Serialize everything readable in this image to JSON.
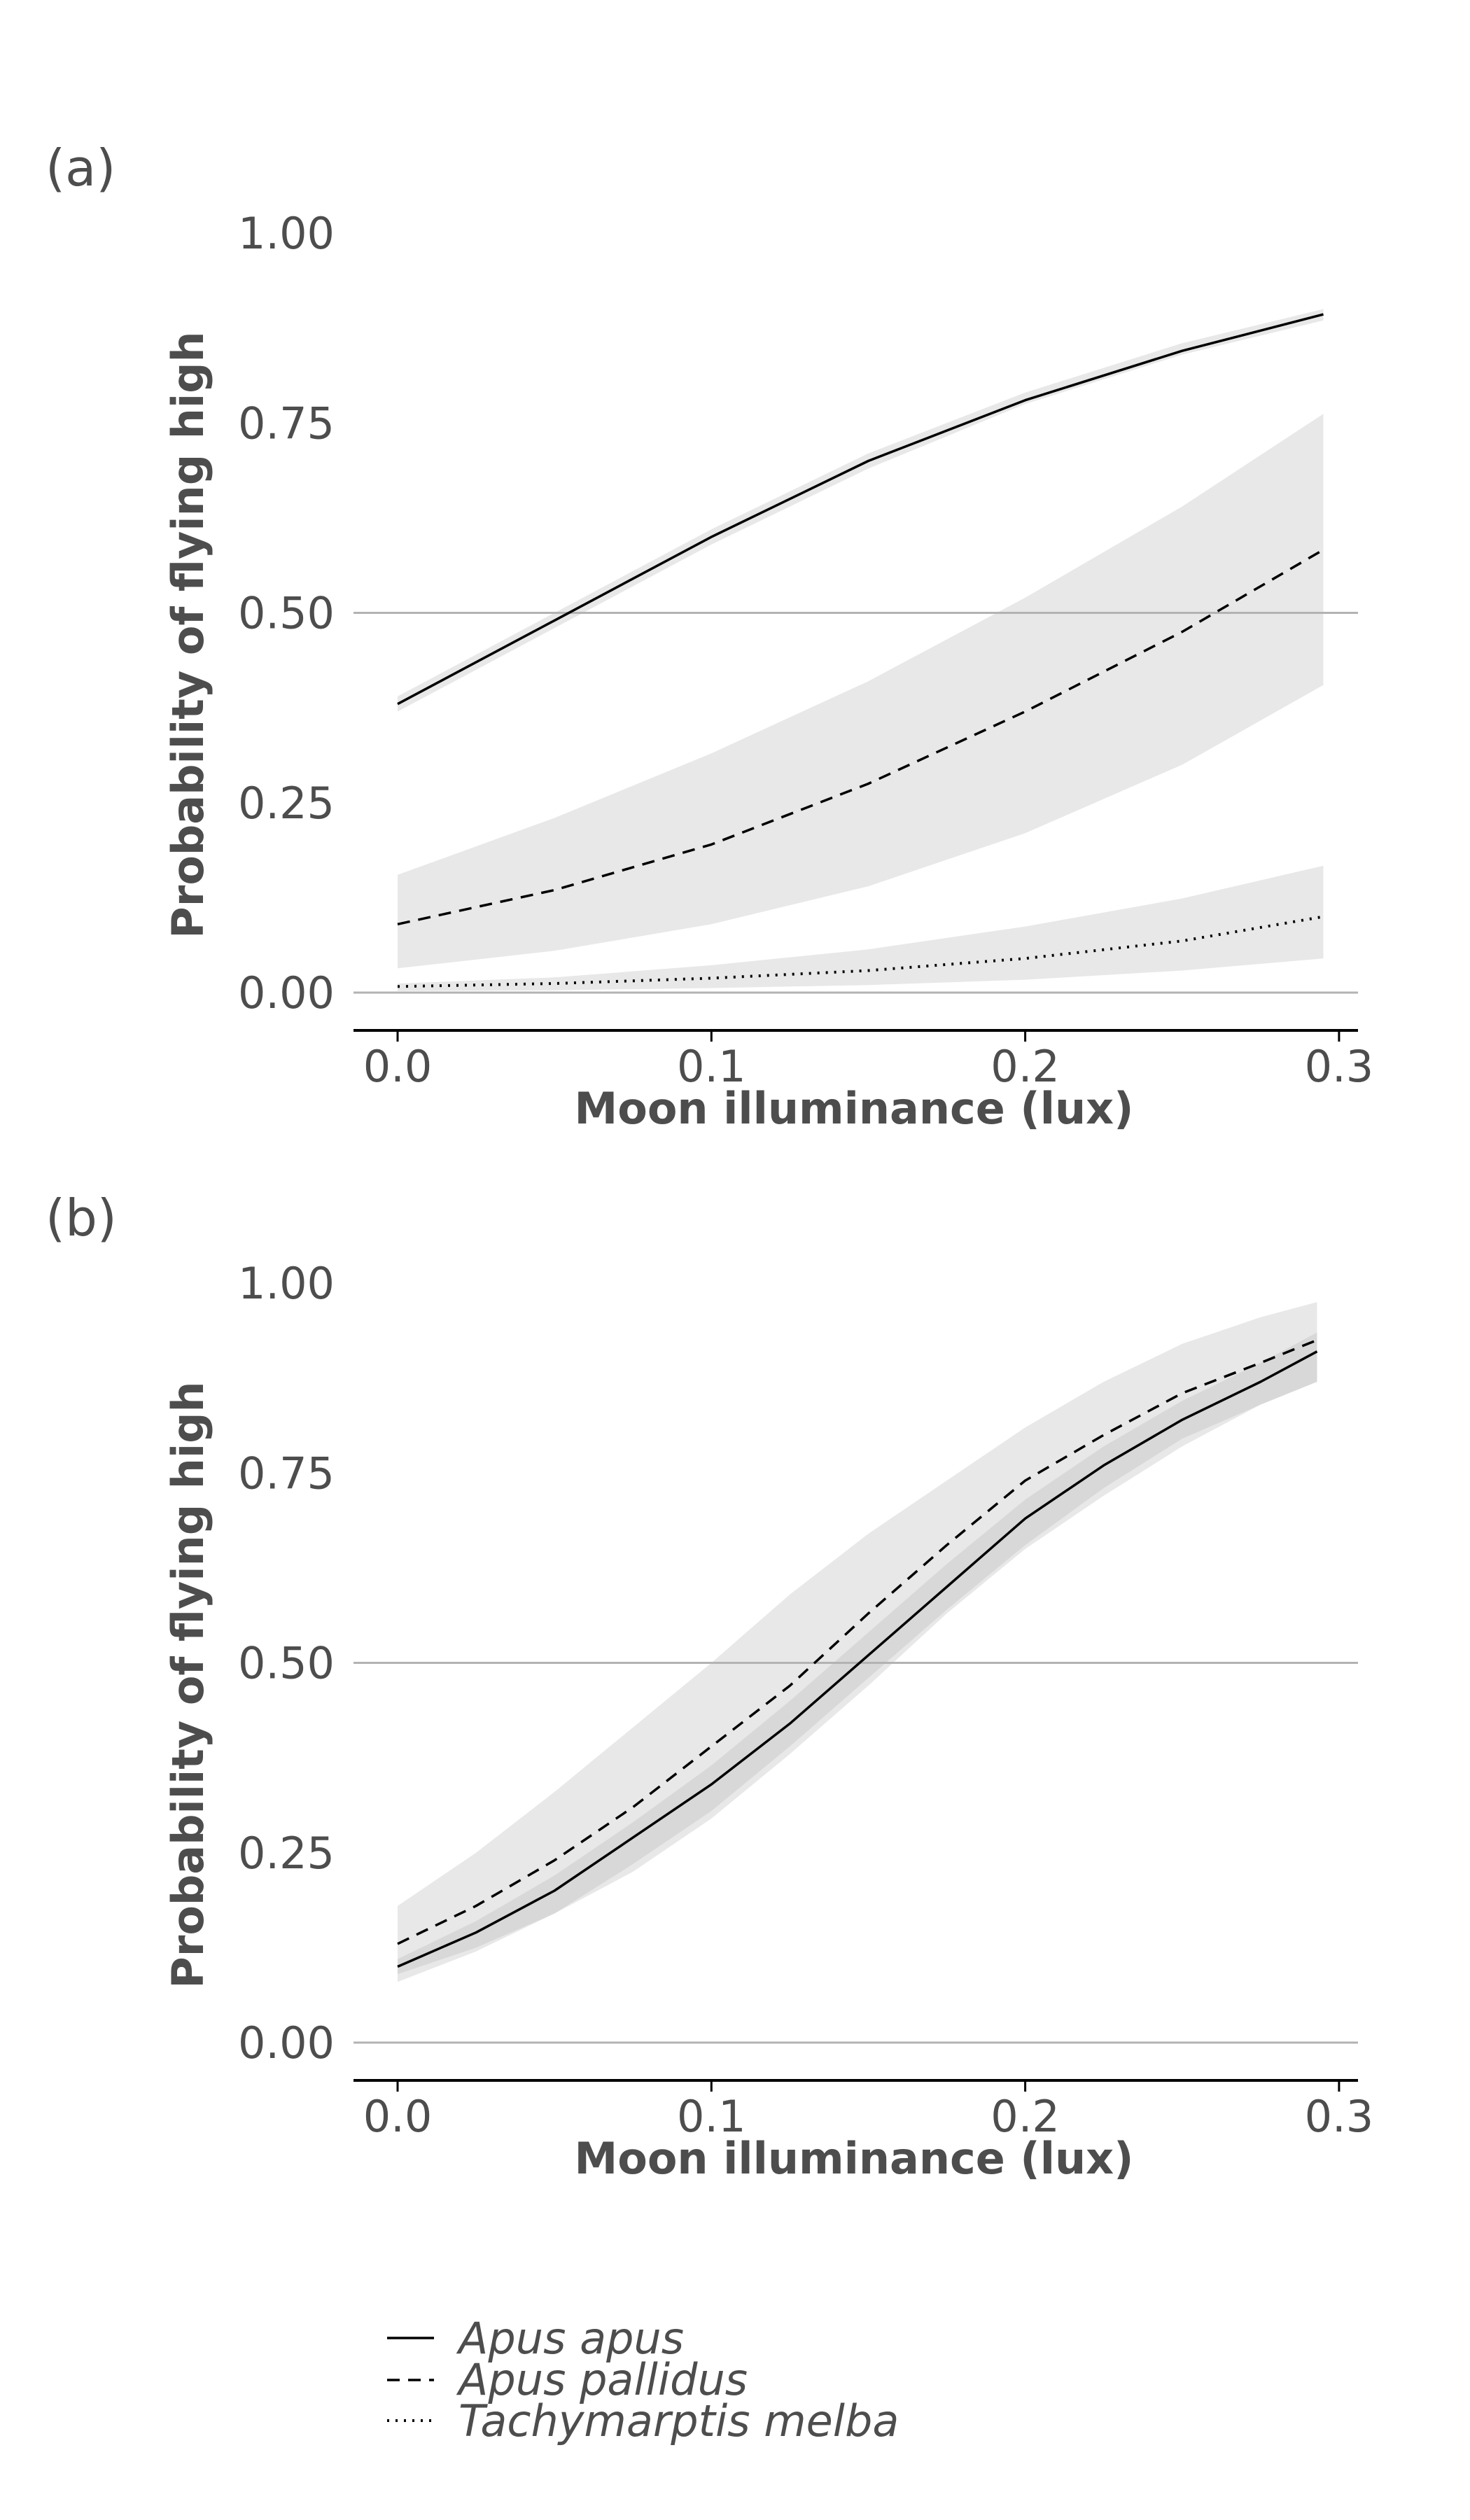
{
  "chart_data": [
    {
      "type": "line",
      "panel_label": "(a)",
      "xlabel": "Moon illuminance (lux)",
      "ylabel": "Probability of flying high",
      "xlim": [
        -0.015,
        0.31
      ],
      "ylim": [
        -0.05,
        1.0
      ],
      "x_ticks": [
        0.0,
        0.1,
        0.2,
        0.3
      ],
      "x_tick_labels": [
        "0.0",
        "0.1",
        "0.2",
        "0.3"
      ],
      "y_ticks": [
        0.0,
        0.25,
        0.5,
        0.75,
        1.0
      ],
      "y_tick_labels": [
        "0.00",
        "0.25",
        "0.50",
        "0.75",
        "1.00"
      ],
      "reference_lines_y": [
        0.0,
        0.5
      ],
      "x": [
        0.0,
        0.05,
        0.1,
        0.15,
        0.2,
        0.25,
        0.295
      ],
      "series": [
        {
          "name": "Apus apus",
          "style": "solid",
          "values": [
            0.38,
            0.49,
            0.6,
            0.7,
            0.78,
            0.845,
            0.893
          ],
          "lower": [
            0.37,
            0.48,
            0.59,
            0.69,
            0.775,
            0.84,
            0.885
          ],
          "upper": [
            0.39,
            0.5,
            0.61,
            0.71,
            0.79,
            0.855,
            0.9
          ]
        },
        {
          "name": "Apus pallidus",
          "style": "dashed",
          "values": [
            0.09,
            0.135,
            0.195,
            0.275,
            0.37,
            0.475,
            0.583
          ],
          "lower": [
            0.032,
            0.055,
            0.09,
            0.14,
            0.21,
            0.3,
            0.405
          ],
          "upper": [
            0.155,
            0.23,
            0.315,
            0.41,
            0.52,
            0.64,
            0.762
          ]
        },
        {
          "name": "Tachymarptis melba",
          "style": "dotted",
          "values": [
            0.008,
            0.012,
            0.019,
            0.029,
            0.045,
            0.068,
            0.1
          ],
          "lower": [
            0.002,
            0.003,
            0.006,
            0.01,
            0.017,
            0.029,
            0.045
          ],
          "upper": [
            0.012,
            0.02,
            0.036,
            0.057,
            0.087,
            0.124,
            0.167
          ]
        }
      ]
    },
    {
      "type": "line",
      "panel_label": "(b)",
      "xlabel": "Moon illuminance (lux)",
      "ylabel": "Probability of flying high",
      "xlim": [
        -0.015,
        0.31
      ],
      "ylim": [
        -0.05,
        1.0
      ],
      "x_ticks": [
        0.0,
        0.1,
        0.2,
        0.3
      ],
      "x_tick_labels": [
        "0.0",
        "0.1",
        "0.2",
        "0.3"
      ],
      "y_ticks": [
        0.0,
        0.25,
        0.5,
        0.75,
        1.0
      ],
      "y_tick_labels": [
        "0.00",
        "0.25",
        "0.50",
        "0.75",
        "1.00"
      ],
      "reference_lines_y": [
        0.0,
        0.5
      ],
      "x": [
        0.0,
        0.025,
        0.05,
        0.075,
        0.1,
        0.125,
        0.15,
        0.175,
        0.2,
        0.225,
        0.25,
        0.275,
        0.293
      ],
      "series": [
        {
          "name": "Apus apus",
          "style": "solid",
          "values": [
            0.1,
            0.145,
            0.2,
            0.27,
            0.34,
            0.42,
            0.51,
            0.6,
            0.69,
            0.76,
            0.82,
            0.87,
            0.91
          ],
          "lower": [
            0.08,
            0.12,
            0.17,
            0.235,
            0.305,
            0.39,
            0.48,
            0.57,
            0.655,
            0.73,
            0.795,
            0.84,
            0.87
          ],
          "upper": [
            0.11,
            0.16,
            0.22,
            0.29,
            0.365,
            0.45,
            0.54,
            0.63,
            0.715,
            0.785,
            0.845,
            0.895,
            0.935
          ]
        },
        {
          "name": "Apus pallidus",
          "style": "dashed",
          "values": [
            0.13,
            0.18,
            0.24,
            0.31,
            0.39,
            0.47,
            0.565,
            0.655,
            0.74,
            0.8,
            0.855,
            0.895,
            0.925
          ],
          "lower": [
            0.09,
            0.125,
            0.17,
            0.225,
            0.295,
            0.38,
            0.47,
            0.565,
            0.65,
            0.72,
            0.785,
            0.84,
            0.87
          ],
          "upper": [
            0.18,
            0.25,
            0.33,
            0.415,
            0.5,
            0.59,
            0.67,
            0.74,
            0.81,
            0.87,
            0.92,
            0.955,
            0.975
          ]
        }
      ]
    }
  ],
  "legend": {
    "entries": [
      {
        "name": "Apus apus",
        "style": "solid"
      },
      {
        "name": "Apus pallidus",
        "style": "dashed"
      },
      {
        "name": "Tachymarptis melba",
        "style": "dotted"
      }
    ]
  },
  "colors": {
    "line": "#000000",
    "ribbon": "#e6e6e6",
    "ribbon_overlap": "#d4d4d4",
    "reference_line": "#b3b3b3",
    "axis": "#000000",
    "text": "#4d4d4d"
  }
}
